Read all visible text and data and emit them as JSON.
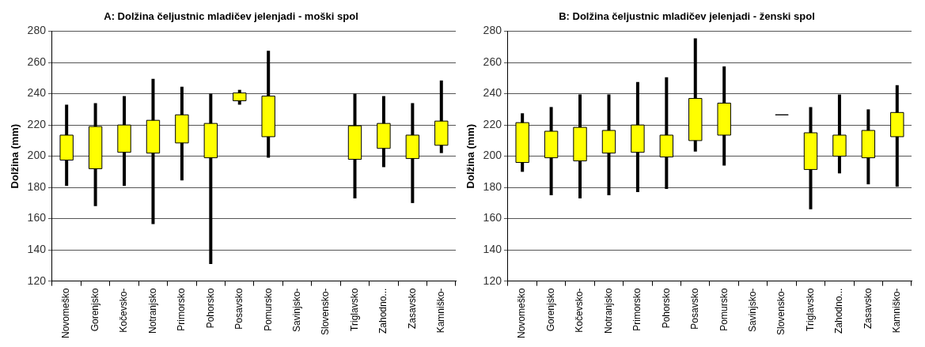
{
  "chart_data": [
    {
      "type": "candlestick",
      "title": "A: Dolžina čeljustnic mladičev jelenjadi - moški spol",
      "ylabel": "Dolžina (mm)",
      "categories": [
        "Novomeško",
        "Gorenjsko",
        "Kočevsko-",
        "Notranjsko",
        "Primorsko",
        "Pohorsko",
        "Posavsko",
        "Pomursko",
        "Savinjsko-",
        "Slovensko-",
        "Triglavsko",
        "Zahodno...",
        "Zasavsko",
        "Kamniško-"
      ],
      "ohlc": [
        [
          197.5,
          233,
          181,
          213.5
        ],
        [
          192,
          234,
          168,
          219
        ],
        [
          202.5,
          238.5,
          181,
          220
        ],
        [
          202,
          249.5,
          156.5,
          223
        ],
        [
          208.5,
          244.5,
          184.5,
          226.5
        ],
        [
          199,
          240,
          131,
          221
        ],
        [
          235.5,
          242.5,
          233,
          240.5
        ],
        [
          212.5,
          267.5,
          199,
          238.5
        ],
        null,
        null,
        [
          198,
          240,
          173,
          219.5
        ],
        [
          205,
          238.5,
          193,
          221
        ],
        [
          198.5,
          234,
          170,
          213.5
        ],
        [
          207,
          248.5,
          202,
          222.5
        ]
      ],
      "color": "#ffff00",
      "ylim": [
        120,
        280
      ],
      "yticks": [
        120,
        140,
        160,
        180,
        200,
        220,
        240,
        260,
        280
      ],
      "grid": "y"
    },
    {
      "type": "candlestick",
      "title": "B: Dolžina čeljustnic mladičev jelenjadi - ženski spol",
      "ylabel": "Dolžina (mm)",
      "categories": [
        "Novomeško",
        "Gorenjsko",
        "Kočevsko-",
        "Notranjsko",
        "Primorsko",
        "Pohorsko",
        "Posavsko",
        "Pomursko",
        "Savinjsko-",
        "Slovensko-",
        "Triglavsko",
        "Zahodno...",
        "Zasavsko",
        "Kamniško-"
      ],
      "ohlc": [
        [
          196,
          227.5,
          190,
          221.5
        ],
        [
          199,
          231.5,
          175,
          216
        ],
        [
          197,
          239.5,
          173,
          218.5
        ],
        [
          202,
          239.5,
          175,
          216.5
        ],
        [
          202.5,
          247.5,
          177,
          220
        ],
        [
          199.5,
          250.5,
          179,
          213.5
        ],
        [
          210,
          275.5,
          203,
          237
        ],
        [
          213.5,
          257.5,
          194,
          234
        ],
        null,
        [
          226.5,
          226.5,
          226.5,
          226.5
        ],
        [
          191.5,
          231.5,
          166,
          215
        ],
        [
          200,
          239.5,
          189,
          213.5
        ],
        [
          199,
          230,
          182,
          216.5
        ],
        [
          212.5,
          245.5,
          180.5,
          228
        ]
      ],
      "colors": [
        "#ffff00",
        "#ffff00",
        "#ffff00",
        "#ffff00",
        "#ffff00",
        "#ffff00",
        "#ffff00",
        "#ffff00",
        null,
        "#000000",
        "#ffff00",
        "#ffff00",
        "#ffff00",
        "#ffff00"
      ],
      "ylim": [
        120,
        280
      ],
      "yticks": [
        120,
        140,
        160,
        180,
        200,
        220,
        240,
        260,
        280
      ],
      "grid": "y"
    }
  ]
}
